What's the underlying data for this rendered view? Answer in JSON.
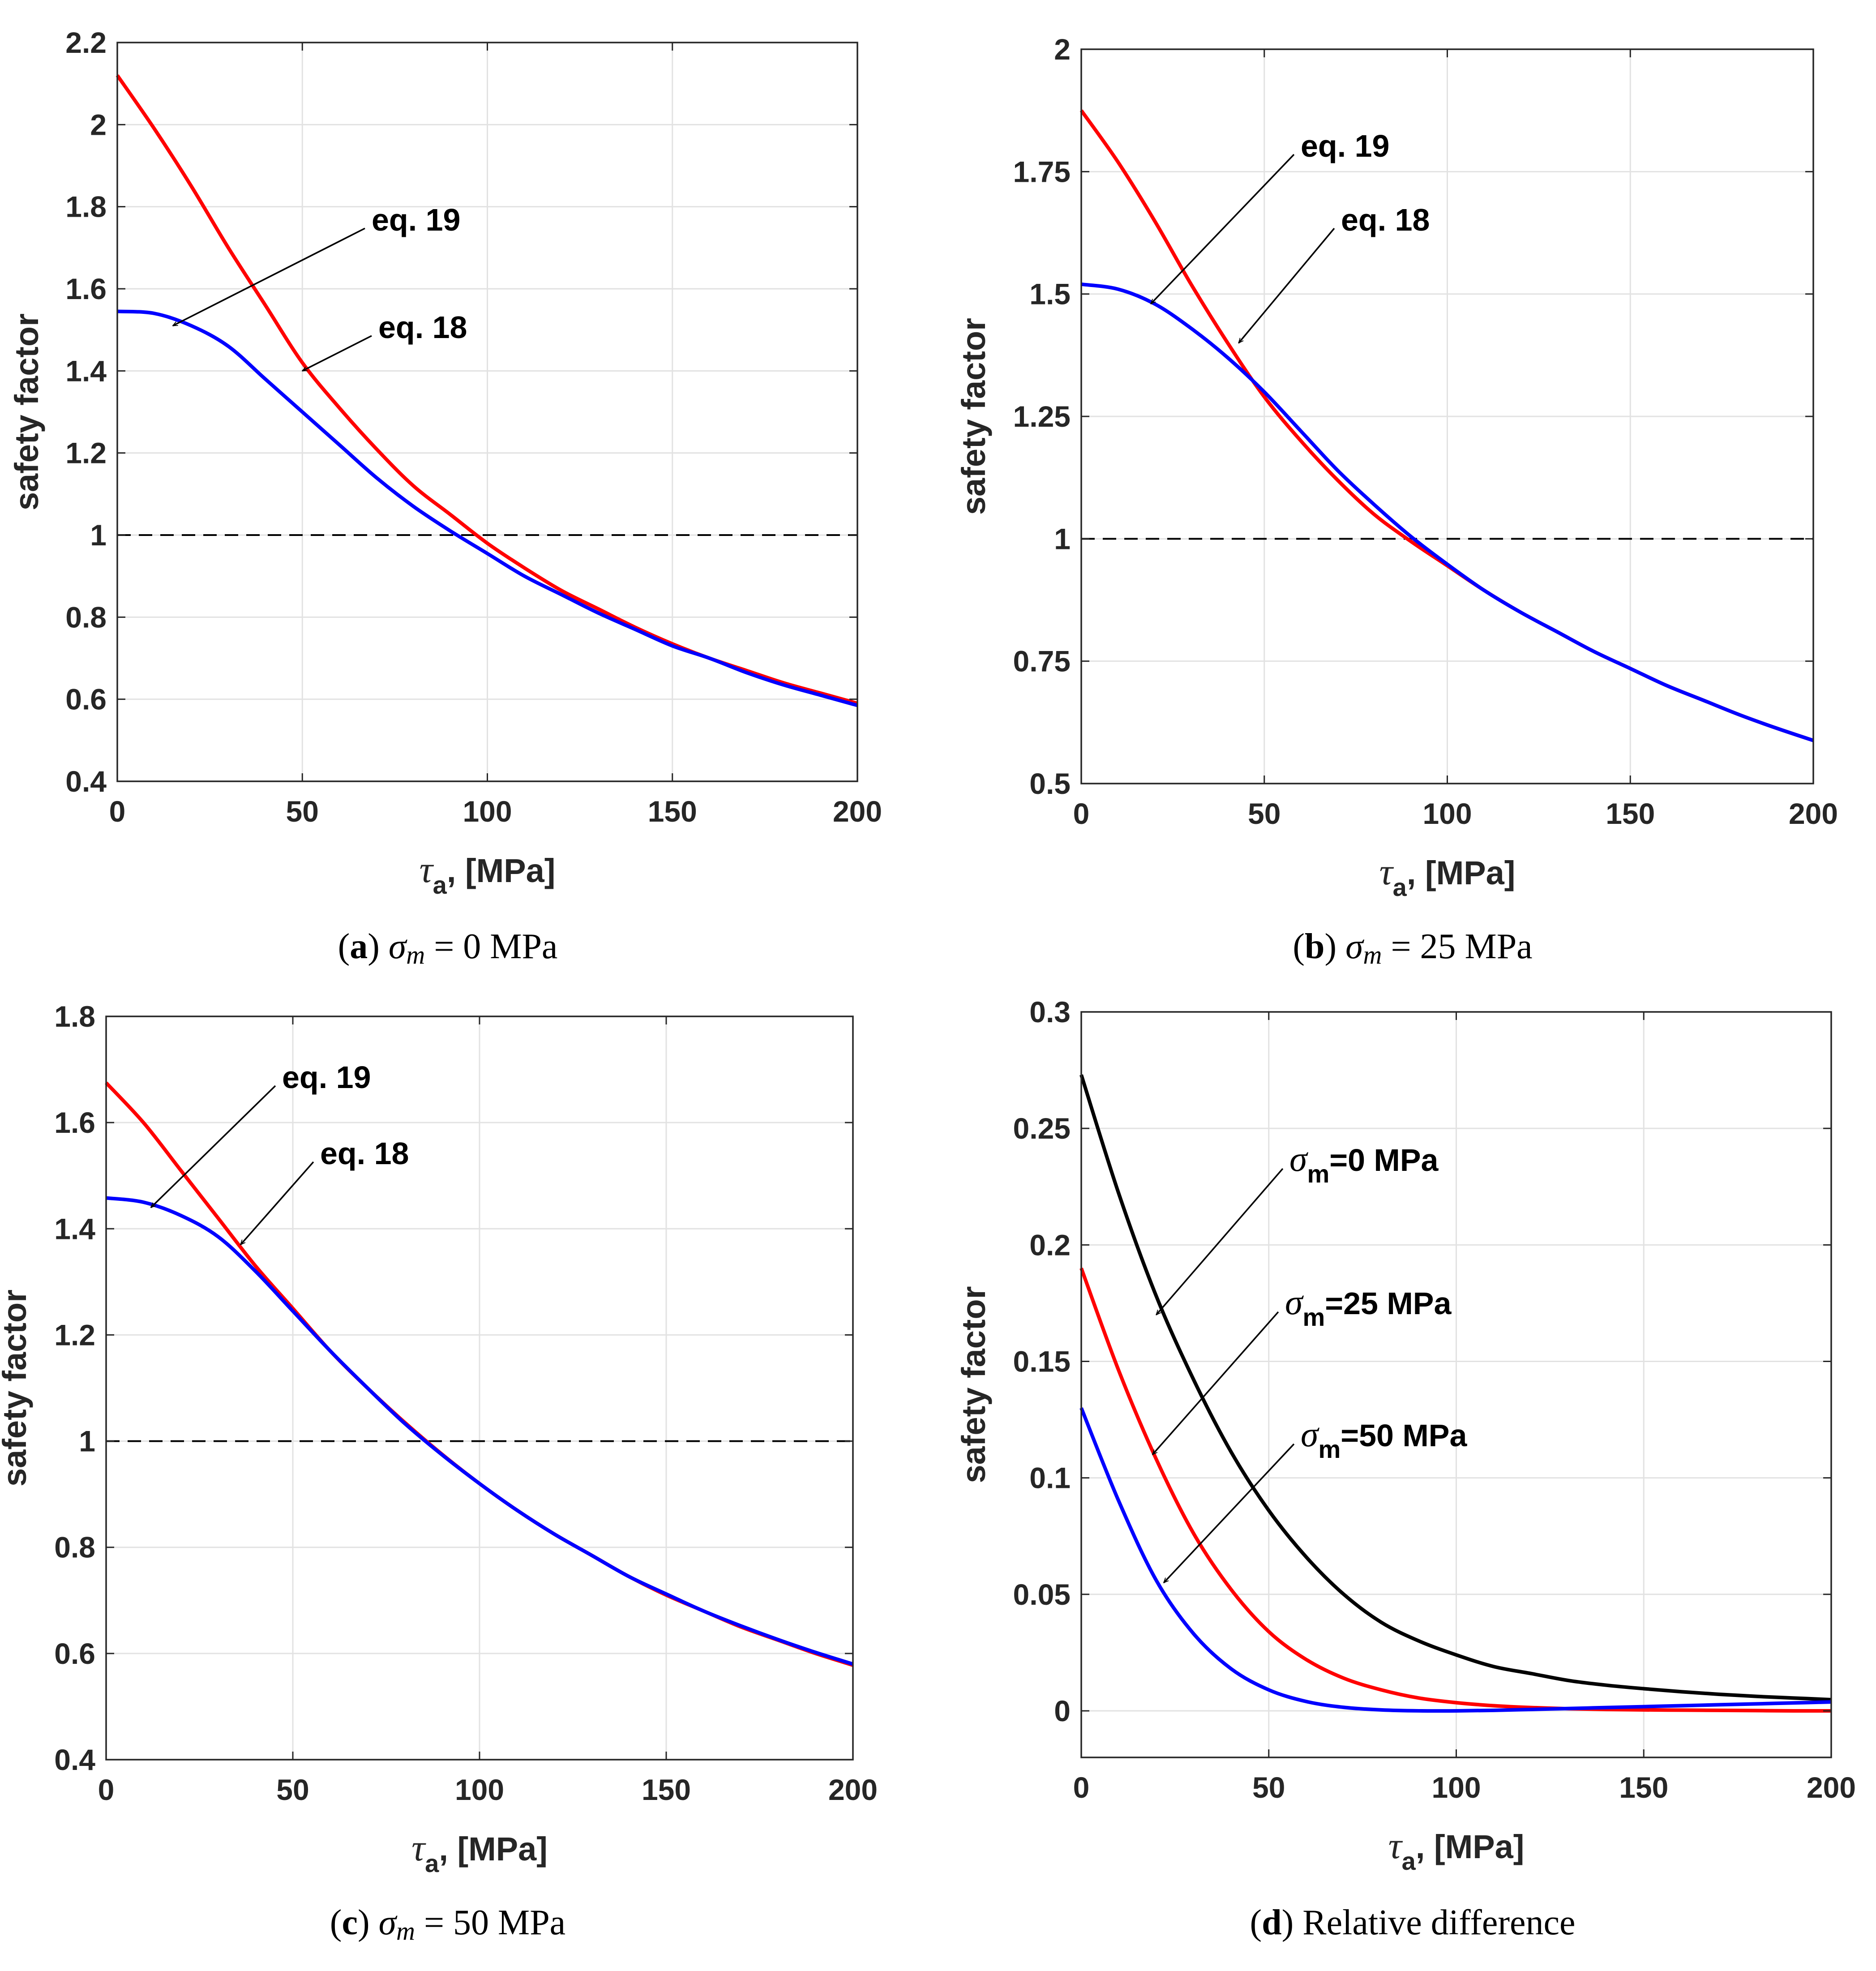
{
  "chart_data": [
    {
      "type": "line",
      "panel": "a",
      "caption": {
        "letter": "a",
        "symbol": "σ",
        "sub": "m",
        "text": "= 0 MPa"
      },
      "xlabel": {
        "symbol": "τ",
        "sub": "a",
        "text": ", [MPa]"
      },
      "ylabel": "safety factor",
      "xlim": [
        0,
        200
      ],
      "ylim": [
        0.4,
        2.2
      ],
      "xticks": [
        "0",
        "50",
        "100",
        "150",
        "200"
      ],
      "yticks": [
        "0.4",
        "0.6",
        "0.8",
        "1",
        "1.2",
        "1.4",
        "1.6",
        "1.8",
        "2",
        "2.2"
      ],
      "grid": true,
      "reference_line": 1,
      "x": [
        0,
        10,
        20,
        30,
        40,
        50,
        60,
        70,
        80,
        90,
        100,
        110,
        120,
        130,
        140,
        150,
        160,
        170,
        180,
        190,
        200
      ],
      "series": [
        {
          "name": "eq. 18",
          "color": "#ff0000",
          "values": [
            2.12,
            1.99,
            1.85,
            1.7,
            1.56,
            1.42,
            1.31,
            1.21,
            1.12,
            1.05,
            0.98,
            0.92,
            0.865,
            0.82,
            0.775,
            0.735,
            0.7,
            0.67,
            0.64,
            0.615,
            0.59
          ]
        },
        {
          "name": "eq. 19",
          "color": "#0000ff",
          "values": [
            1.545,
            1.54,
            1.51,
            1.46,
            1.38,
            1.3,
            1.22,
            1.14,
            1.07,
            1.01,
            0.955,
            0.9,
            0.855,
            0.81,
            0.77,
            0.73,
            0.7,
            0.665,
            0.635,
            0.61,
            0.585
          ]
        }
      ],
      "annotations": [
        {
          "text": "eq. 19",
          "target_x": 15,
          "target_y": 1.51
        },
        {
          "text": "eq. 18",
          "target_x": 50,
          "target_y": 1.4
        }
      ]
    },
    {
      "type": "line",
      "panel": "b",
      "caption": {
        "letter": "b",
        "symbol": "σ",
        "sub": "m",
        "text": "= 25 MPa"
      },
      "xlabel": {
        "symbol": "τ",
        "sub": "a",
        "text": ", [MPa]"
      },
      "ylabel": "safety factor",
      "xlim": [
        0,
        200
      ],
      "ylim": [
        0.5,
        2
      ],
      "xticks": [
        "0",
        "50",
        "100",
        "150",
        "200"
      ],
      "yticks": [
        "0.5",
        "0.75",
        "1",
        "1.25",
        "1.5",
        "1.75",
        "2"
      ],
      "grid": true,
      "reference_line": 1,
      "x": [
        0,
        10,
        20,
        30,
        40,
        50,
        60,
        70,
        80,
        90,
        100,
        110,
        120,
        130,
        140,
        150,
        160,
        170,
        180,
        190,
        200
      ],
      "series": [
        {
          "name": "eq. 18",
          "color": "#ff0000",
          "values": [
            1.875,
            1.77,
            1.65,
            1.52,
            1.4,
            1.29,
            1.2,
            1.12,
            1.05,
            0.995,
            0.945,
            0.895,
            0.85,
            0.81,
            0.77,
            0.735,
            0.7,
            0.67,
            0.64,
            0.613,
            0.588
          ]
        },
        {
          "name": "eq. 19",
          "color": "#0000ff",
          "values": [
            1.52,
            1.51,
            1.48,
            1.43,
            1.37,
            1.3,
            1.22,
            1.14,
            1.07,
            1.005,
            0.948,
            0.895,
            0.85,
            0.81,
            0.77,
            0.735,
            0.7,
            0.67,
            0.64,
            0.613,
            0.588
          ]
        }
      ],
      "annotations": [
        {
          "text": "eq. 19",
          "target_x": 19,
          "target_y": 1.48
        },
        {
          "text": "eq. 18",
          "target_x": 43,
          "target_y": 1.4
        }
      ]
    },
    {
      "type": "line",
      "panel": "c",
      "caption": {
        "letter": "c",
        "symbol": "σ",
        "sub": "m",
        "text": "= 50 MPa"
      },
      "xlabel": {
        "symbol": "τ",
        "sub": "a",
        "text": ", [MPa]"
      },
      "ylabel": "safety factor",
      "xlim": [
        0,
        200
      ],
      "ylim": [
        0.4,
        1.8
      ],
      "xticks": [
        "0",
        "50",
        "100",
        "150",
        "200"
      ],
      "yticks": [
        "0.4",
        "0.6",
        "0.8",
        "1",
        "1.2",
        "1.4",
        "1.6",
        "1.8"
      ],
      "grid": true,
      "reference_line": 1,
      "x": [
        0,
        10,
        20,
        30,
        40,
        50,
        60,
        70,
        80,
        90,
        100,
        110,
        120,
        130,
        140,
        150,
        160,
        170,
        180,
        190,
        200
      ],
      "series": [
        {
          "name": "eq. 18",
          "color": "#ff0000",
          "values": [
            1.675,
            1.6,
            1.51,
            1.42,
            1.33,
            1.25,
            1.17,
            1.1,
            1.035,
            0.975,
            0.92,
            0.87,
            0.825,
            0.785,
            0.745,
            0.71,
            0.68,
            0.65,
            0.625,
            0.6,
            0.578
          ]
        },
        {
          "name": "eq. 19",
          "color": "#0000ff",
          "values": [
            1.458,
            1.45,
            1.425,
            1.385,
            1.32,
            1.245,
            1.17,
            1.1,
            1.033,
            0.974,
            0.92,
            0.87,
            0.825,
            0.785,
            0.745,
            0.712,
            0.68,
            0.652,
            0.626,
            0.602,
            0.58
          ]
        }
      ],
      "annotations": [
        {
          "text": "eq. 19",
          "target_x": 12,
          "target_y": 1.44
        },
        {
          "text": "eq. 18",
          "target_x": 36,
          "target_y": 1.37
        }
      ]
    },
    {
      "type": "line",
      "panel": "d",
      "caption": {
        "letter": "d",
        "text": "Relative difference"
      },
      "xlabel": {
        "symbol": "τ",
        "sub": "a",
        "text": ", [MPa]"
      },
      "ylabel": "safety factor",
      "xlim": [
        0,
        200
      ],
      "ylim": [
        -0.02,
        0.3
      ],
      "xticks": [
        "0",
        "50",
        "100",
        "150",
        "200"
      ],
      "yticks": [
        "0",
        "0.05",
        "0.1",
        "0.15",
        "0.2",
        "0.25",
        "0.3"
      ],
      "grid": true,
      "x": [
        0,
        10,
        20,
        30,
        40,
        50,
        60,
        70,
        80,
        90,
        100,
        110,
        120,
        130,
        140,
        150,
        160,
        170,
        180,
        190,
        200
      ],
      "series": [
        {
          "name": "σm=0 MPa",
          "color": "#000000",
          "values": [
            0.273,
            0.222,
            0.178,
            0.142,
            0.111,
            0.086,
            0.066,
            0.05,
            0.038,
            0.03,
            0.024,
            0.019,
            0.016,
            0.013,
            0.011,
            0.0095,
            0.0082,
            0.0071,
            0.0062,
            0.0055,
            0.0048
          ]
        },
        {
          "name": "σm=25 MPa",
          "color": "#ff0000",
          "values": [
            0.19,
            0.146,
            0.108,
            0.076,
            0.052,
            0.034,
            0.022,
            0.014,
            0.009,
            0.0055,
            0.0035,
            0.0022,
            0.0014,
            0.0009,
            0.0006,
            0.0004,
            0.0003,
            0.0002,
            0.0001,
            0.0,
            0.0
          ]
        },
        {
          "name": "σm=50 MPa",
          "color": "#0000ff",
          "values": [
            0.13,
            0.09,
            0.056,
            0.033,
            0.018,
            0.009,
            0.004,
            0.0015,
            0.0004,
            0.0,
            0.0,
            0.0002,
            0.0006,
            0.001,
            0.0014,
            0.0018,
            0.0022,
            0.0026,
            0.003,
            0.0034,
            0.0038
          ]
        }
      ],
      "annotations": [
        {
          "symbol": "σ",
          "sub": "m",
          "text": "=0 MPa",
          "target_x": 20,
          "target_y": 0.17
        },
        {
          "symbol": "σ",
          "sub": "m",
          "text": "=25 MPa",
          "target_x": 19,
          "target_y": 0.11
        },
        {
          "symbol": "σ",
          "sub": "m",
          "text": "=50 MPa",
          "target_x": 22,
          "target_y": 0.055
        }
      ]
    }
  ]
}
